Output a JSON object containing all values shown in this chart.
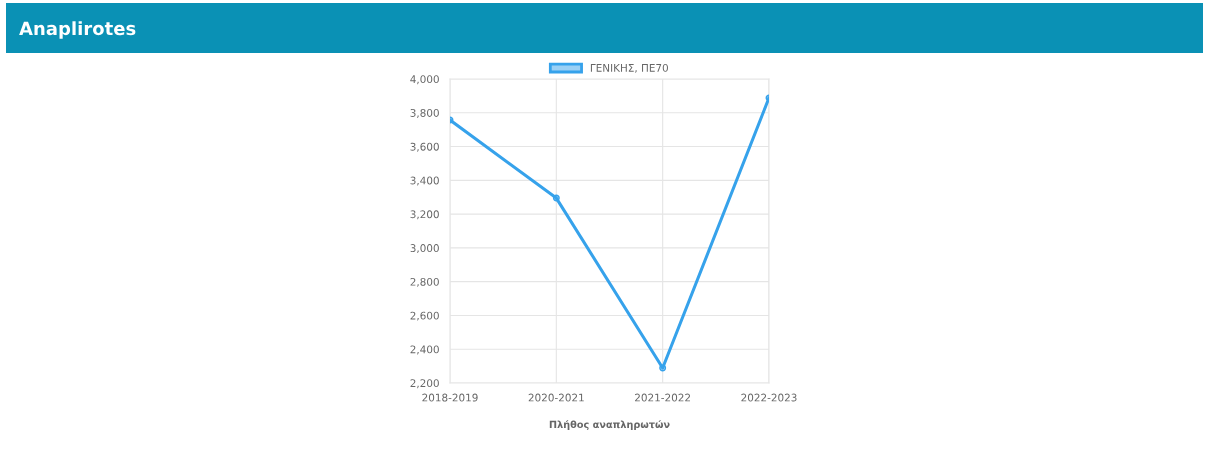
{
  "chart_data": {
    "type": "line",
    "title": "Anaplirotes",
    "xlabel": "Πλήθος αναπληρωτών",
    "categories": [
      "2018-2019",
      "2020-2021",
      "2021-2022",
      "2022-2023"
    ],
    "series": [
      {
        "name": "ΓΕΝΙΚΗΣ, ΠΕ70",
        "color": "#36a2eb",
        "values": [
          3757,
          3295,
          2289,
          3888
        ]
      }
    ],
    "ylim": [
      2200,
      4000
    ],
    "yticks": [
      {
        "value": 2200,
        "label": "2,200"
      },
      {
        "value": 2400,
        "label": "2,400"
      },
      {
        "value": 2600,
        "label": "2,600"
      },
      {
        "value": 2800,
        "label": "2,800"
      },
      {
        "value": 3000,
        "label": "3,000"
      },
      {
        "value": 3200,
        "label": "3,200"
      },
      {
        "value": 3400,
        "label": "3,400"
      },
      {
        "value": 3600,
        "label": "3,600"
      },
      {
        "value": 3800,
        "label": "3,800"
      },
      {
        "value": 4000,
        "label": "4,000"
      }
    ],
    "grid": true,
    "legend": "top",
    "marker": "circle",
    "line_style": "solid"
  }
}
